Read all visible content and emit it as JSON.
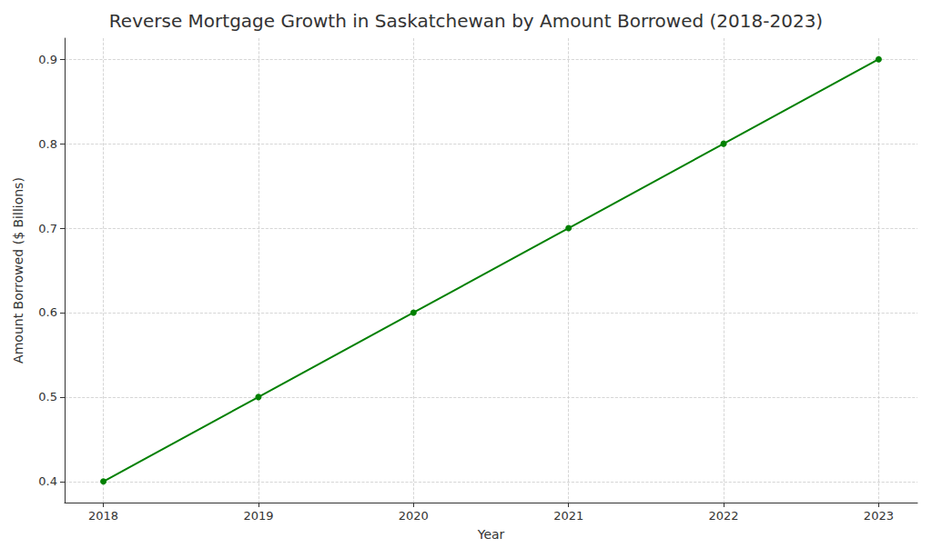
{
  "chart_data": {
    "type": "line",
    "title": "Reverse Mortgage Growth in Saskatchewan by Amount Borrowed (2018-2023)",
    "x_label": "Year",
    "y_label": "Amount Borrowed ($ Billions)",
    "x": [
      2018,
      2019,
      2020,
      2021,
      2022,
      2023
    ],
    "values": [
      0.4,
      0.5,
      0.6,
      0.7,
      0.8,
      0.9
    ],
    "color": "#008000",
    "marker": "circle",
    "xlim": [
      2017.75,
      2023.25
    ],
    "xticks": [
      2018,
      2019,
      2020,
      2021,
      2022,
      2023
    ],
    "ylim": [
      0.375,
      0.925
    ],
    "yticks": [
      0.4,
      0.5,
      0.6,
      0.7,
      0.8,
      0.9
    ],
    "grid": true
  }
}
